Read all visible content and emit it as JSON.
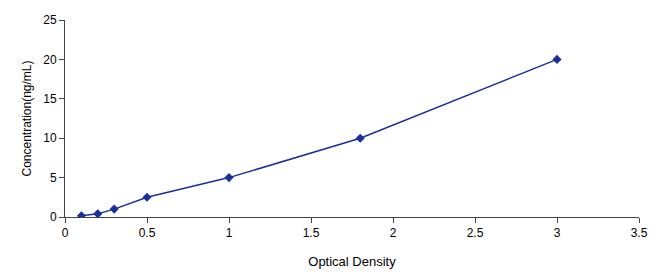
{
  "chart_data": {
    "type": "line",
    "x": [
      0.1,
      0.2,
      0.3,
      0.5,
      1.0,
      1.8,
      3.0
    ],
    "values": [
      0.15,
      0.4,
      1.0,
      2.5,
      5.0,
      10.0,
      20.0
    ],
    "color": "#1A2F9C",
    "marker": "diamond",
    "xlabel": "Optical Density",
    "ylabel": "Concentration(ng/mL)",
    "xlim": [
      0,
      3.5
    ],
    "ylim": [
      0,
      25
    ],
    "xticks": [
      0,
      0.5,
      1,
      1.5,
      2,
      2.5,
      3,
      3.5
    ],
    "yticks": [
      0,
      5,
      10,
      15,
      20,
      25
    ],
    "grid": false
  }
}
